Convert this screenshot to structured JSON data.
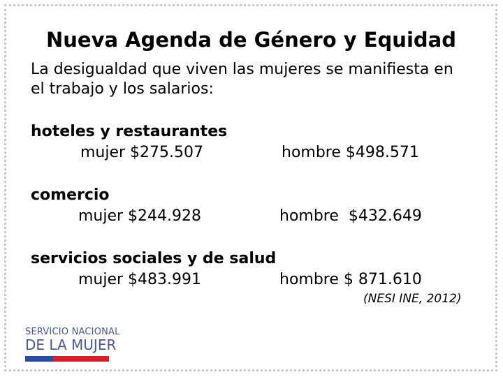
{
  "title": "Nueva Agenda de Género y Equidad",
  "intro": {
    "line1": "La desigualdad que viven las mujeres se manifiesta en",
    "line2": "el trabajo y los salarios:"
  },
  "sectors": [
    {
      "name": "hoteles y restaurantes",
      "mujer": "mujer $275.507",
      "hombre": "hombre $498.571"
    },
    {
      "name": "comercio",
      "mujer": "mujer $244.928",
      "hombre": "hombre  $432.649"
    },
    {
      "name": "servicios sociales y de salud",
      "mujer": "mujer $483.991",
      "hombre": "hombre $ 871.610"
    }
  ],
  "source": "(NESI INE, 2012)",
  "logo": {
    "line1": "SERVICIO NACIONAL",
    "line2": "DE LA MUJER",
    "colors": {
      "text": "#4a5a8c",
      "blue": "#2a4c9c",
      "red": "#d4202a"
    }
  }
}
